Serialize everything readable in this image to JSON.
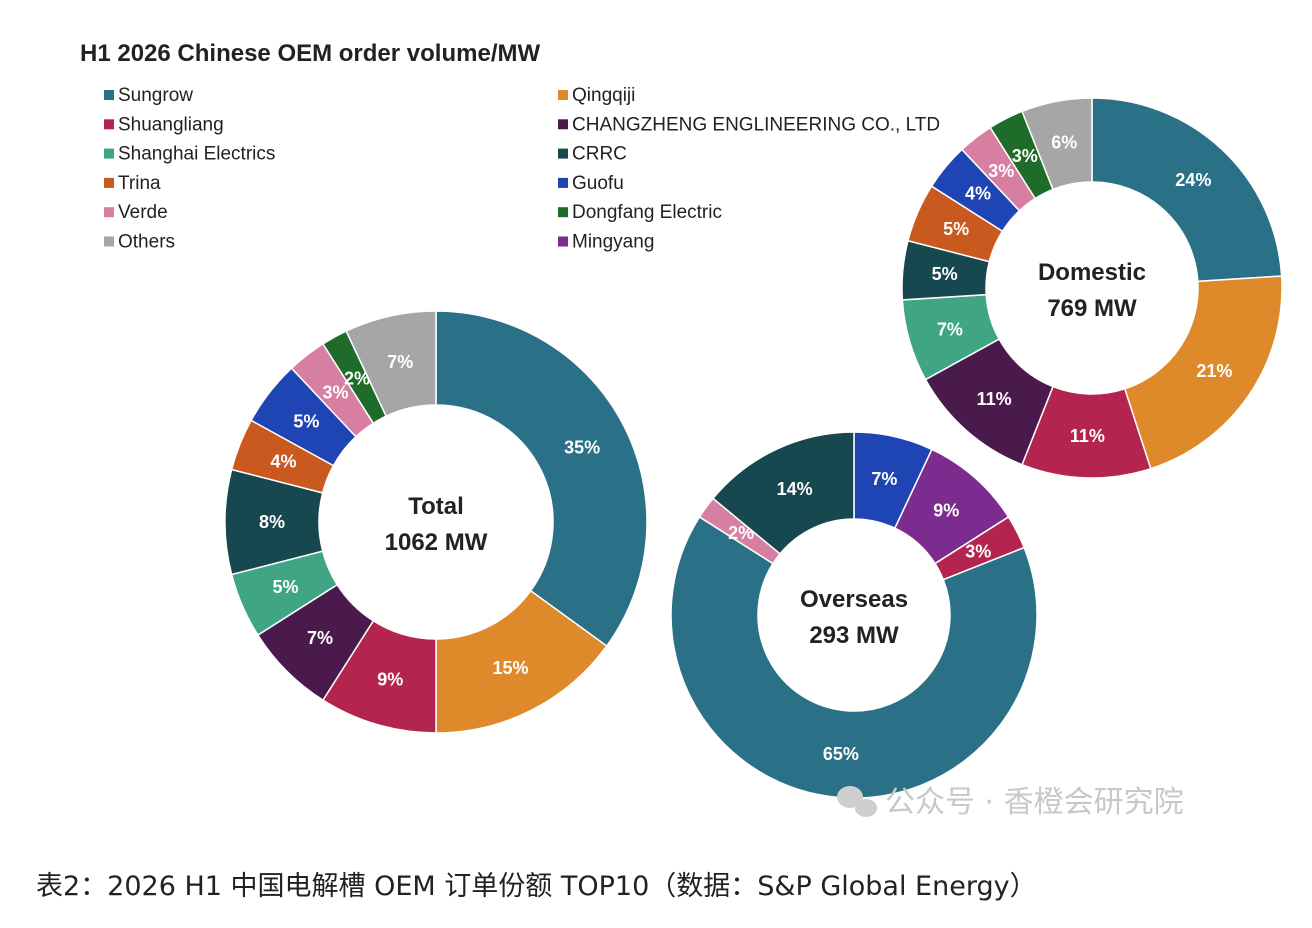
{
  "chart_data": {
    "type": "pie",
    "title": "H1 2026 Chinese OEM order volume/MW",
    "legend": [
      {
        "name": "Sungrow",
        "color": "#2a7187"
      },
      {
        "name": "Qingqiji",
        "color": "#de8a2b"
      },
      {
        "name": "Shuangliang",
        "color": "#b3244f"
      },
      {
        "name": "CHANGZHENG ENGLINEERING CO., LTD",
        "color": "#4a1a4d"
      },
      {
        "name": "Shanghai Electrics",
        "color": "#3fa585"
      },
      {
        "name": "CRRC",
        "color": "#17484f"
      },
      {
        "name": "Trina",
        "color": "#c9591f"
      },
      {
        "name": "Guofu",
        "color": "#1f44b3"
      },
      {
        "name": "Verde",
        "color": "#d67fa1"
      },
      {
        "name": "Dongfang Electric",
        "color": "#1f6b2a"
      },
      {
        "name": "Others",
        "color": "#a6a6a6"
      },
      {
        "name": "Mingyang",
        "color": "#7b2c8e"
      }
    ],
    "charts": [
      {
        "center_label": "Total",
        "center_value": "1062 MW",
        "slices": [
          {
            "name": "Sungrow",
            "value": 35,
            "label": "35%"
          },
          {
            "name": "Qingqiji",
            "value": 15,
            "label": "15%"
          },
          {
            "name": "Shuangliang",
            "value": 9,
            "label": "9%"
          },
          {
            "name": "CHANGZHENG ENGLINEERING CO., LTD",
            "value": 7,
            "label": "7%"
          },
          {
            "name": "Shanghai Electrics",
            "value": 5,
            "label": "5%"
          },
          {
            "name": "CRRC",
            "value": 8,
            "label": "8%"
          },
          {
            "name": "Trina",
            "value": 4,
            "label": "4%"
          },
          {
            "name": "Guofu",
            "value": 5,
            "label": "5%"
          },
          {
            "name": "Verde",
            "value": 3,
            "label": "3%"
          },
          {
            "name": "Dongfang Electric",
            "value": 2,
            "label": "2%"
          },
          {
            "name": "Others",
            "value": 7,
            "label": "7%"
          }
        ]
      },
      {
        "center_label": "Domestic",
        "center_value": "769 MW",
        "slices": [
          {
            "name": "Sungrow",
            "value": 24,
            "label": "24%"
          },
          {
            "name": "Qingqiji",
            "value": 21,
            "label": "21%"
          },
          {
            "name": "Shuangliang",
            "value": 11,
            "label": "11%"
          },
          {
            "name": "CHANGZHENG ENGLINEERING CO., LTD",
            "value": 11,
            "label": "11%"
          },
          {
            "name": "Shanghai Electrics",
            "value": 7,
            "label": "7%"
          },
          {
            "name": "CRRC",
            "value": 5,
            "label": "5%"
          },
          {
            "name": "Trina",
            "value": 5,
            "label": "5%"
          },
          {
            "name": "Guofu",
            "value": 4,
            "label": "4%"
          },
          {
            "name": "Verde",
            "value": 3,
            "label": "3%"
          },
          {
            "name": "Dongfang Electric",
            "value": 3,
            "label": "3%"
          },
          {
            "name": "Others",
            "value": 6,
            "label": "6%"
          }
        ]
      },
      {
        "center_label": "Overseas",
        "center_value": "293 MW",
        "slices": [
          {
            "name": "Guofu",
            "value": 7,
            "label": "7%"
          },
          {
            "name": "Mingyang",
            "value": 9,
            "label": "9%"
          },
          {
            "name": "Shuangliang",
            "value": 3,
            "label": "3%"
          },
          {
            "name": "Sungrow",
            "value": 65,
            "label": "65%"
          },
          {
            "name": "Verde",
            "value": 2,
            "label": "2%"
          },
          {
            "name": "CRRC",
            "value": 14,
            "label": "14%"
          }
        ]
      }
    ]
  },
  "watermark": "公众号 · 香橙会研究院",
  "caption": "表2：2026 H1 中国电解槽 OEM 订单份额 TOP10（数据：S&P Global Energy）"
}
